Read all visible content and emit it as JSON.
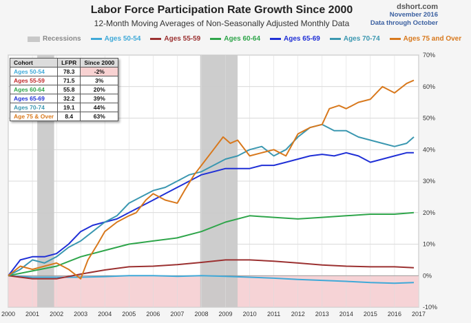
{
  "chart_data": {
    "type": "line",
    "title": "Labor Force Participation Rate Growth Since 2000",
    "subtitle": "12-Month Moving Averages of Non-Seasonally Adjusted Monthly Data",
    "source_line1": "dshort.com",
    "source_line2": "November 2016",
    "source_line3": "Data through October",
    "recession_label": "Recessions",
    "recessions": [
      [
        2001.2,
        2001.9
      ],
      [
        2007.95,
        2009.5
      ]
    ],
    "x_ticks": [
      "2000",
      "2001",
      "2002",
      "2003",
      "2004",
      "2005",
      "2006",
      "2007",
      "2008",
      "2009",
      "2010",
      "2011",
      "2012",
      "2013",
      "2014",
      "2015",
      "2016",
      "2017"
    ],
    "y_ticks": [
      "-10%",
      "0%",
      "10%",
      "20%",
      "30%",
      "40%",
      "50%",
      "60%",
      "70%"
    ],
    "xlim": [
      2000,
      2017
    ],
    "ylim": [
      -10,
      70
    ],
    "negative_shade_color": "#f6d3d6",
    "series": [
      {
        "name": "Ages 50-54",
        "color": "#3fa9d8",
        "points": [
          [
            2000,
            0
          ],
          [
            2001,
            -0.5
          ],
          [
            2002,
            -0.5
          ],
          [
            2003,
            -0.5
          ],
          [
            2004,
            -0.3
          ],
          [
            2005,
            0
          ],
          [
            2006,
            0
          ],
          [
            2007,
            -0.2
          ],
          [
            2008,
            0
          ],
          [
            2009,
            -0.2
          ],
          [
            2010,
            -0.5
          ],
          [
            2011,
            -0.8
          ],
          [
            2012,
            -1.2
          ],
          [
            2013,
            -1.5
          ],
          [
            2014,
            -1.8
          ],
          [
            2015,
            -2.2
          ],
          [
            2016,
            -2.4
          ],
          [
            2016.8,
            -2.2
          ]
        ]
      },
      {
        "name": "Ages 55-59",
        "color": "#9b3030",
        "points": [
          [
            2000,
            0
          ],
          [
            2000.5,
            -0.5
          ],
          [
            2001,
            -1
          ],
          [
            2002,
            -1
          ],
          [
            2003,
            0.5
          ],
          [
            2004,
            1.8
          ],
          [
            2005,
            2.8
          ],
          [
            2006,
            3
          ],
          [
            2007,
            3.5
          ],
          [
            2008,
            4.2
          ],
          [
            2009,
            5
          ],
          [
            2010,
            5
          ],
          [
            2011,
            4.6
          ],
          [
            2012,
            4
          ],
          [
            2013,
            3.4
          ],
          [
            2014,
            3
          ],
          [
            2015,
            2.8
          ],
          [
            2016,
            2.8
          ],
          [
            2016.8,
            2.5
          ]
        ]
      },
      {
        "name": "Ages 60-64",
        "color": "#2ea54a",
        "points": [
          [
            2000,
            0
          ],
          [
            2001,
            1.5
          ],
          [
            2002,
            3
          ],
          [
            2003,
            6
          ],
          [
            2004,
            8
          ],
          [
            2005,
            10
          ],
          [
            2006,
            11
          ],
          [
            2007,
            12
          ],
          [
            2008,
            14
          ],
          [
            2009,
            17
          ],
          [
            2010,
            19
          ],
          [
            2011,
            18.5
          ],
          [
            2012,
            18
          ],
          [
            2013,
            18.5
          ],
          [
            2014,
            19
          ],
          [
            2015,
            19.5
          ],
          [
            2016,
            19.5
          ],
          [
            2016.8,
            20
          ]
        ]
      },
      {
        "name": "Ages 65-69",
        "color": "#1f2fd6",
        "points": [
          [
            2000,
            0
          ],
          [
            2000.5,
            5
          ],
          [
            2001,
            6
          ],
          [
            2001.5,
            6
          ],
          [
            2002,
            7
          ],
          [
            2002.5,
            10
          ],
          [
            2003,
            14
          ],
          [
            2003.5,
            16
          ],
          [
            2004,
            17
          ],
          [
            2004.5,
            18
          ],
          [
            2005,
            20
          ],
          [
            2005.5,
            22
          ],
          [
            2006,
            24
          ],
          [
            2006.5,
            26
          ],
          [
            2007,
            28
          ],
          [
            2007.5,
            30
          ],
          [
            2008,
            32
          ],
          [
            2008.5,
            33
          ],
          [
            2009,
            34
          ],
          [
            2009.5,
            34
          ],
          [
            2010,
            34
          ],
          [
            2010.5,
            35
          ],
          [
            2011,
            35
          ],
          [
            2011.5,
            36
          ],
          [
            2012,
            37
          ],
          [
            2012.5,
            38
          ],
          [
            2013,
            38.5
          ],
          [
            2013.5,
            38
          ],
          [
            2014,
            39
          ],
          [
            2014.5,
            38
          ],
          [
            2015,
            36
          ],
          [
            2015.5,
            37
          ],
          [
            2016,
            38
          ],
          [
            2016.5,
            39
          ],
          [
            2016.8,
            39
          ]
        ]
      },
      {
        "name": "Ages 70-74",
        "color": "#3a97b0",
        "points": [
          [
            2000,
            0
          ],
          [
            2000.5,
            2
          ],
          [
            2001,
            5
          ],
          [
            2001.5,
            4
          ],
          [
            2002,
            6
          ],
          [
            2002.5,
            9
          ],
          [
            2003,
            11
          ],
          [
            2003.5,
            14
          ],
          [
            2004,
            17
          ],
          [
            2004.5,
            19
          ],
          [
            2005,
            23
          ],
          [
            2005.5,
            25
          ],
          [
            2006,
            27
          ],
          [
            2006.5,
            28
          ],
          [
            2007,
            30
          ],
          [
            2007.5,
            32
          ],
          [
            2008,
            33
          ],
          [
            2008.5,
            35
          ],
          [
            2009,
            37
          ],
          [
            2009.5,
            38
          ],
          [
            2010,
            40
          ],
          [
            2010.5,
            41
          ],
          [
            2011,
            38
          ],
          [
            2011.5,
            40
          ],
          [
            2012,
            44
          ],
          [
            2012.5,
            47
          ],
          [
            2013,
            48
          ],
          [
            2013.5,
            46
          ],
          [
            2014,
            46
          ],
          [
            2014.5,
            44
          ],
          [
            2015,
            43
          ],
          [
            2015.5,
            42
          ],
          [
            2016,
            41
          ],
          [
            2016.5,
            42
          ],
          [
            2016.8,
            44
          ]
        ]
      },
      {
        "name": "Ages 75 and Over",
        "color": "#d8781c",
        "points": [
          [
            2000,
            0
          ],
          [
            2000.5,
            3
          ],
          [
            2001,
            2
          ],
          [
            2001.5,
            3
          ],
          [
            2002,
            4
          ],
          [
            2002.5,
            2
          ],
          [
            2003,
            -1
          ],
          [
            2003.3,
            5
          ],
          [
            2003.7,
            10
          ],
          [
            2004,
            14
          ],
          [
            2004.5,
            17
          ],
          [
            2005,
            19
          ],
          [
            2005.3,
            20
          ],
          [
            2005.7,
            24
          ],
          [
            2006,
            26
          ],
          [
            2006.5,
            24
          ],
          [
            2007,
            23
          ],
          [
            2007.3,
            27
          ],
          [
            2007.7,
            32
          ],
          [
            2008,
            35
          ],
          [
            2008.5,
            40
          ],
          [
            2008.9,
            44
          ],
          [
            2009.2,
            42
          ],
          [
            2009.5,
            43
          ],
          [
            2010,
            38
          ],
          [
            2010.5,
            39
          ],
          [
            2011,
            40
          ],
          [
            2011.5,
            38
          ],
          [
            2012,
            45
          ],
          [
            2012.5,
            47
          ],
          [
            2013,
            48
          ],
          [
            2013.3,
            53
          ],
          [
            2013.7,
            54
          ],
          [
            2014,
            53
          ],
          [
            2014.5,
            55
          ],
          [
            2015,
            56
          ],
          [
            2015.5,
            60
          ],
          [
            2016,
            58
          ],
          [
            2016.5,
            61
          ],
          [
            2016.8,
            62
          ]
        ]
      }
    ],
    "table": {
      "headers": [
        "Cohort",
        "LFPR",
        "Since 2000"
      ],
      "rows": [
        {
          "cohort": "Ages 50-54",
          "lfpr": "78.3",
          "since": "-2%",
          "color": "#3fa9d8",
          "negative": true
        },
        {
          "cohort": "Ages 55-59",
          "lfpr": "71.5",
          "since": "3%",
          "color": "#c0282b",
          "negative": false
        },
        {
          "cohort": "Ages 60-64",
          "lfpr": "55.8",
          "since": "20%",
          "color": "#2ea54a",
          "negative": false
        },
        {
          "cohort": "Ages 65-69",
          "lfpr": "32.2",
          "since": "39%",
          "color": "#1f2fd6",
          "negative": false
        },
        {
          "cohort": "Ages 70-74",
          "lfpr": "19.1",
          "since": "44%",
          "color": "#3a97b0",
          "negative": false
        },
        {
          "cohort": "Age 75 & Over",
          "lfpr": "8.4",
          "since": "63%",
          "color": "#d8781c",
          "negative": false
        }
      ]
    }
  }
}
